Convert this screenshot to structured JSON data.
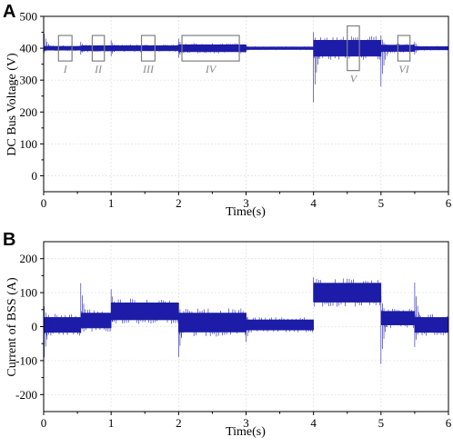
{
  "colors": {
    "signal": "#1c1ca8",
    "box": "#808080",
    "grid": "#e3e3e3"
  },
  "chart_data": [
    {
      "type": "line",
      "panel_label": "A",
      "xlabel": "Time(s)",
      "ylabel": "DC Bus Voltage (V)",
      "xlim": [
        0,
        6
      ],
      "ylim": [
        -50,
        500
      ],
      "xticks": [
        0,
        1,
        2,
        3,
        4,
        5,
        6
      ],
      "yticks": [
        0,
        100,
        200,
        300,
        400,
        500
      ],
      "grid": true,
      "series": [
        {
          "segments": [
            {
              "t0": 0.0,
              "t1": 0.55,
              "center": 400,
              "half_width": 6
            },
            {
              "t0": 0.55,
              "t1": 1.0,
              "center": 400,
              "half_width": 8
            },
            {
              "t0": 1.0,
              "t1": 2.0,
              "center": 400,
              "half_width": 8
            },
            {
              "t0": 2.0,
              "t1": 3.0,
              "center": 400,
              "half_width": 11
            },
            {
              "t0": 3.0,
              "t1": 4.0,
              "center": 400,
              "half_width": 4
            },
            {
              "t0": 4.0,
              "t1": 5.0,
              "center": 400,
              "half_width": 25
            },
            {
              "t0": 5.0,
              "t1": 5.5,
              "center": 400,
              "half_width": 10
            },
            {
              "t0": 5.5,
              "t1": 6.0,
              "center": 400,
              "half_width": 5
            }
          ],
          "transients": [
            {
              "t": 0.0,
              "max": 445,
              "min": 385
            },
            {
              "t": 0.55,
              "max": 420,
              "min": 380
            },
            {
              "t": 1.0,
              "max": 425,
              "min": 375
            },
            {
              "t": 2.0,
              "max": 430,
              "min": 370
            },
            {
              "t": 3.0,
              "max": 410,
              "min": 390
            },
            {
              "t": 4.0,
              "max": 450,
              "min": 230
            },
            {
              "t": 5.0,
              "max": 440,
              "min": 280
            },
            {
              "t": 5.5,
              "max": 420,
              "min": 380
            }
          ]
        }
      ],
      "annotations": [
        {
          "label": "I",
          "x0": 0.22,
          "x1": 0.42,
          "y0": 360,
          "y1": 440
        },
        {
          "label": "II",
          "x0": 0.72,
          "x1": 0.9,
          "y0": 360,
          "y1": 440
        },
        {
          "label": "III",
          "x0": 1.45,
          "x1": 1.65,
          "y0": 360,
          "y1": 440
        },
        {
          "label": "IV",
          "x0": 2.05,
          "x1": 2.9,
          "y0": 360,
          "y1": 440
        },
        {
          "label": "V",
          "x0": 4.5,
          "x1": 4.68,
          "y0": 330,
          "y1": 470
        },
        {
          "label": "VI",
          "x0": 5.25,
          "x1": 5.43,
          "y0": 360,
          "y1": 440
        }
      ]
    },
    {
      "type": "line",
      "panel_label": "B",
      "xlabel": "Time(s)",
      "ylabel": "Current of BSS (A)",
      "xlim": [
        0,
        6
      ],
      "ylim": [
        -250,
        250
      ],
      "xticks": [
        0,
        1,
        2,
        3,
        4,
        5,
        6
      ],
      "yticks": [
        -200,
        -100,
        0,
        100,
        200
      ],
      "grid": true,
      "series": [
        {
          "segments": [
            {
              "t0": 0.0,
              "t1": 0.55,
              "center": 5,
              "half_width": 22
            },
            {
              "t0": 0.55,
              "t1": 1.0,
              "center": 18,
              "half_width": 22
            },
            {
              "t0": 1.0,
              "t1": 2.0,
              "center": 45,
              "half_width": 25
            },
            {
              "t0": 2.0,
              "t1": 3.0,
              "center": 12,
              "half_width": 28
            },
            {
              "t0": 3.0,
              "t1": 4.0,
              "center": 5,
              "half_width": 15
            },
            {
              "t0": 4.0,
              "t1": 5.0,
              "center": 100,
              "half_width": 28
            },
            {
              "t0": 5.0,
              "t1": 5.5,
              "center": 25,
              "half_width": 20
            },
            {
              "t0": 5.5,
              "t1": 6.0,
              "center": 5,
              "half_width": 22
            }
          ],
          "transients": [
            {
              "t": 0.0,
              "max": 60,
              "min": -90
            },
            {
              "t": 0.55,
              "max": 128,
              "min": -20
            },
            {
              "t": 1.0,
              "max": 110,
              "min": 0
            },
            {
              "t": 2.0,
              "max": 70,
              "min": -90
            },
            {
              "t": 3.0,
              "max": 40,
              "min": -45
            },
            {
              "t": 4.0,
              "max": 145,
              "min": 75
            },
            {
              "t": 5.0,
              "max": 90,
              "min": -110
            },
            {
              "t": 5.5,
              "max": 130,
              "min": -60
            }
          ]
        }
      ]
    }
  ]
}
